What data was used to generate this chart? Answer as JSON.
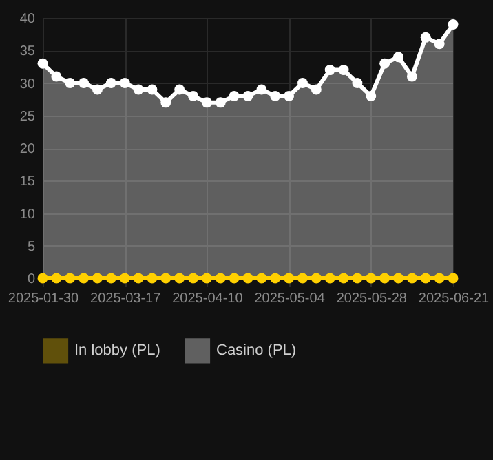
{
  "chart_data": {
    "type": "area",
    "categories": [
      "2025-01-30",
      null,
      null,
      null,
      null,
      null,
      "2025-03-17",
      null,
      null,
      null,
      null,
      null,
      "2025-04-10",
      null,
      null,
      null,
      null,
      null,
      "2025-05-04",
      null,
      null,
      null,
      null,
      null,
      "2025-05-28",
      null,
      null,
      null,
      null,
      null,
      "2025-06-21"
    ],
    "series": [
      {
        "name": "In lobby (PL)",
        "type": "line",
        "color": "#ffd000",
        "values": [
          0,
          0,
          0,
          0,
          0,
          0,
          0,
          0,
          0,
          0,
          0,
          0,
          0,
          0,
          0,
          0,
          0,
          0,
          0,
          0,
          0,
          0,
          0,
          0,
          0,
          0,
          0,
          0,
          0,
          0,
          0
        ]
      },
      {
        "name": "Casino (PL)",
        "color": "#ffffff",
        "values": [
          33,
          31,
          30,
          30,
          29,
          30,
          30,
          29,
          29,
          27,
          29,
          28,
          27,
          27,
          28,
          28,
          29,
          28,
          28,
          30,
          29,
          32,
          32,
          30,
          28,
          33,
          34,
          31,
          37,
          36,
          39
        ]
      }
    ],
    "ylim": [
      0,
      40
    ],
    "yticks": [
      0,
      5,
      10,
      15,
      20,
      25,
      30,
      35,
      40
    ],
    "grid": true,
    "legend": "bottom",
    "marker": "circle",
    "line_style": "solid"
  }
}
